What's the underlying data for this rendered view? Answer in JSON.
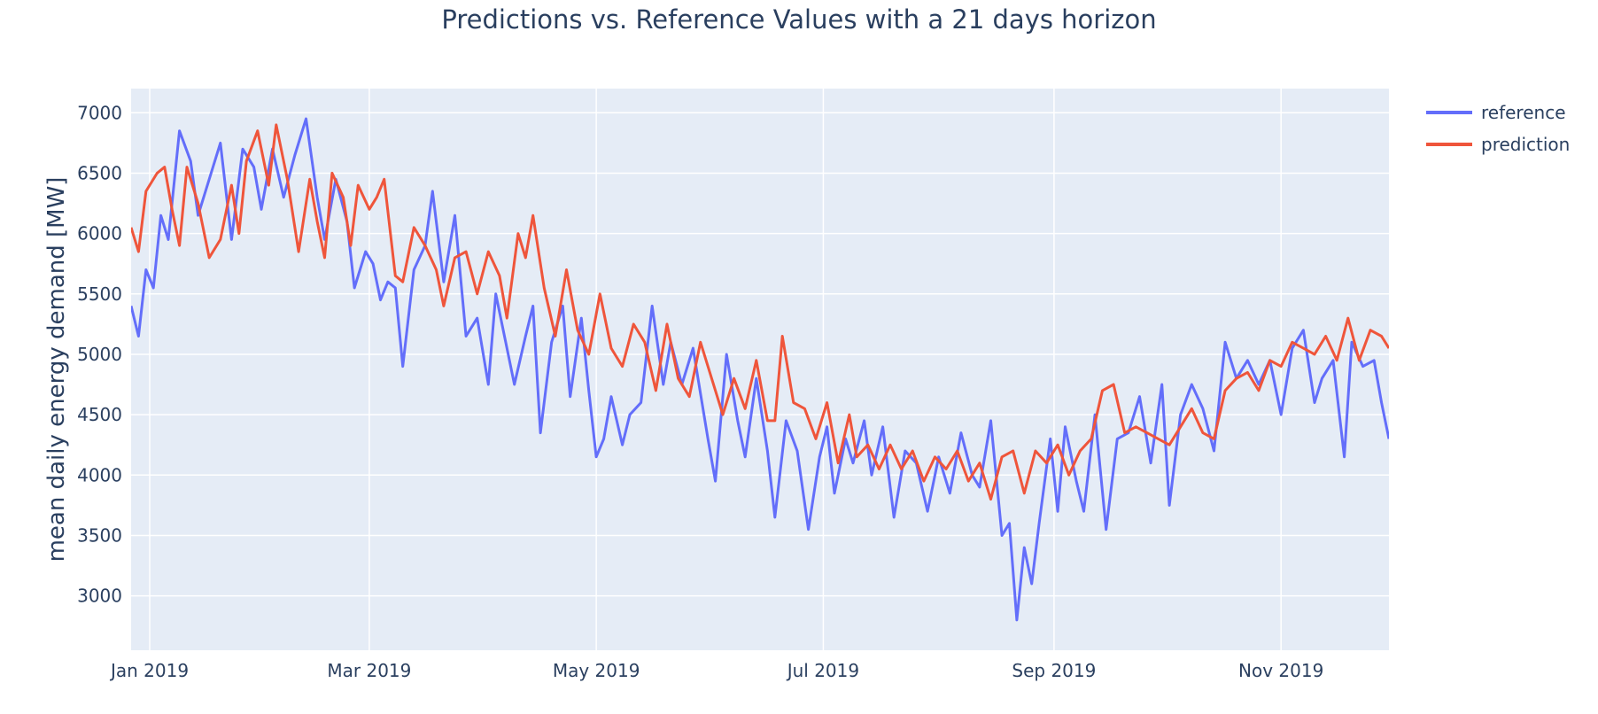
{
  "chart_data": {
    "type": "line",
    "title": "Predictions vs. Reference Values with a 21 days horizon",
    "xlabel": "",
    "ylabel": "mean daily energy demand [MW]",
    "x_range": [
      "2018-12-27",
      "2019-11-30"
    ],
    "ylim": [
      2550,
      7200
    ],
    "x_ticks": [
      {
        "date": "2019-01-01",
        "label": "Jan 2019"
      },
      {
        "date": "2019-03-01",
        "label": "Mar 2019"
      },
      {
        "date": "2019-05-01",
        "label": "May 2019"
      },
      {
        "date": "2019-07-01",
        "label": "Jul 2019"
      },
      {
        "date": "2019-09-01",
        "label": "Sep 2019"
      },
      {
        "date": "2019-11-01",
        "label": "Nov 2019"
      }
    ],
    "y_ticks": [
      3000,
      3500,
      4000,
      4500,
      5000,
      5500,
      6000,
      6500,
      7000
    ],
    "grid": true,
    "plot_background": "#e5ecf6",
    "legend_position": "top-right outside",
    "series": [
      {
        "name": "reference",
        "color": "#636efa",
        "points": [
          [
            "2018-12-27",
            5400
          ],
          [
            "2018-12-29",
            5150
          ],
          [
            "2018-12-31",
            5700
          ],
          [
            "2019-01-02",
            5550
          ],
          [
            "2019-01-04",
            6150
          ],
          [
            "2019-01-06",
            5950
          ],
          [
            "2019-01-09",
            6850
          ],
          [
            "2019-01-12",
            6600
          ],
          [
            "2019-01-14",
            6150
          ],
          [
            "2019-01-17",
            6450
          ],
          [
            "2019-01-20",
            6750
          ],
          [
            "2019-01-23",
            5950
          ],
          [
            "2019-01-26",
            6700
          ],
          [
            "2019-01-29",
            6550
          ],
          [
            "2019-01-31",
            6200
          ],
          [
            "2019-02-03",
            6700
          ],
          [
            "2019-02-06",
            6300
          ],
          [
            "2019-02-09",
            6650
          ],
          [
            "2019-02-12",
            6950
          ],
          [
            "2019-02-15",
            6300
          ],
          [
            "2019-02-17",
            5950
          ],
          [
            "2019-02-20",
            6450
          ],
          [
            "2019-02-23",
            6100
          ],
          [
            "2019-02-25",
            5550
          ],
          [
            "2019-02-28",
            5850
          ],
          [
            "2019-03-02",
            5750
          ],
          [
            "2019-03-04",
            5450
          ],
          [
            "2019-03-06",
            5600
          ],
          [
            "2019-03-08",
            5550
          ],
          [
            "2019-03-10",
            4900
          ],
          [
            "2019-03-13",
            5700
          ],
          [
            "2019-03-16",
            5900
          ],
          [
            "2019-03-18",
            6350
          ],
          [
            "2019-03-21",
            5600
          ],
          [
            "2019-03-24",
            6150
          ],
          [
            "2019-03-27",
            5150
          ],
          [
            "2019-03-30",
            5300
          ],
          [
            "2019-04-02",
            4750
          ],
          [
            "2019-04-04",
            5500
          ],
          [
            "2019-04-07",
            5050
          ],
          [
            "2019-04-09",
            4750
          ],
          [
            "2019-04-12",
            5150
          ],
          [
            "2019-04-14",
            5400
          ],
          [
            "2019-04-16",
            4350
          ],
          [
            "2019-04-19",
            5100
          ],
          [
            "2019-04-22",
            5400
          ],
          [
            "2019-04-24",
            4650
          ],
          [
            "2019-04-27",
            5300
          ],
          [
            "2019-04-29",
            4700
          ],
          [
            "2019-05-01",
            4150
          ],
          [
            "2019-05-03",
            4300
          ],
          [
            "2019-05-05",
            4650
          ],
          [
            "2019-05-08",
            4250
          ],
          [
            "2019-05-10",
            4500
          ],
          [
            "2019-05-13",
            4600
          ],
          [
            "2019-05-16",
            5400
          ],
          [
            "2019-05-19",
            4750
          ],
          [
            "2019-05-21",
            5100
          ],
          [
            "2019-05-24",
            4750
          ],
          [
            "2019-05-27",
            5050
          ],
          [
            "2019-05-31",
            4300
          ],
          [
            "2019-06-02",
            3950
          ],
          [
            "2019-06-05",
            5000
          ],
          [
            "2019-06-08",
            4450
          ],
          [
            "2019-06-10",
            4150
          ],
          [
            "2019-06-13",
            4800
          ],
          [
            "2019-06-16",
            4200
          ],
          [
            "2019-06-18",
            3650
          ],
          [
            "2019-06-21",
            4450
          ],
          [
            "2019-06-24",
            4200
          ],
          [
            "2019-06-27",
            3550
          ],
          [
            "2019-06-30",
            4150
          ],
          [
            "2019-07-02",
            4400
          ],
          [
            "2019-07-04",
            3850
          ],
          [
            "2019-07-07",
            4300
          ],
          [
            "2019-07-09",
            4100
          ],
          [
            "2019-07-12",
            4450
          ],
          [
            "2019-07-14",
            4000
          ],
          [
            "2019-07-17",
            4400
          ],
          [
            "2019-07-20",
            3650
          ],
          [
            "2019-07-23",
            4200
          ],
          [
            "2019-07-26",
            4100
          ],
          [
            "2019-07-29",
            3700
          ],
          [
            "2019-08-01",
            4150
          ],
          [
            "2019-08-04",
            3850
          ],
          [
            "2019-08-07",
            4350
          ],
          [
            "2019-08-10",
            4000
          ],
          [
            "2019-08-12",
            3900
          ],
          [
            "2019-08-15",
            4450
          ],
          [
            "2019-08-18",
            3500
          ],
          [
            "2019-08-20",
            3600
          ],
          [
            "2019-08-22",
            2800
          ],
          [
            "2019-08-24",
            3400
          ],
          [
            "2019-08-26",
            3100
          ],
          [
            "2019-08-28",
            3600
          ],
          [
            "2019-08-31",
            4300
          ],
          [
            "2019-09-02",
            3700
          ],
          [
            "2019-09-04",
            4400
          ],
          [
            "2019-09-07",
            3950
          ],
          [
            "2019-09-09",
            3700
          ],
          [
            "2019-09-12",
            4500
          ],
          [
            "2019-09-15",
            3550
          ],
          [
            "2019-09-18",
            4300
          ],
          [
            "2019-09-21",
            4350
          ],
          [
            "2019-09-24",
            4650
          ],
          [
            "2019-09-27",
            4100
          ],
          [
            "2019-09-30",
            4750
          ],
          [
            "2019-10-02",
            3750
          ],
          [
            "2019-10-05",
            4500
          ],
          [
            "2019-10-08",
            4750
          ],
          [
            "2019-10-11",
            4550
          ],
          [
            "2019-10-14",
            4200
          ],
          [
            "2019-10-17",
            5100
          ],
          [
            "2019-10-20",
            4800
          ],
          [
            "2019-10-23",
            4950
          ],
          [
            "2019-10-26",
            4750
          ],
          [
            "2019-10-29",
            4950
          ],
          [
            "2019-11-01",
            4500
          ],
          [
            "2019-11-04",
            5050
          ],
          [
            "2019-11-07",
            5200
          ],
          [
            "2019-11-10",
            4600
          ],
          [
            "2019-11-12",
            4800
          ],
          [
            "2019-11-15",
            4950
          ],
          [
            "2019-11-18",
            4150
          ],
          [
            "2019-11-20",
            5100
          ],
          [
            "2019-11-23",
            4900
          ],
          [
            "2019-11-26",
            4950
          ],
          [
            "2019-11-28",
            4600
          ],
          [
            "2019-11-30",
            4300
          ]
        ]
      },
      {
        "name": "prediction",
        "color": "#ef553b",
        "points": [
          [
            "2018-12-27",
            6050
          ],
          [
            "2018-12-29",
            5850
          ],
          [
            "2018-12-31",
            6350
          ],
          [
            "2019-01-03",
            6500
          ],
          [
            "2019-01-05",
            6550
          ],
          [
            "2019-01-07",
            6200
          ],
          [
            "2019-01-09",
            5900
          ],
          [
            "2019-01-11",
            6550
          ],
          [
            "2019-01-14",
            6250
          ],
          [
            "2019-01-17",
            5800
          ],
          [
            "2019-01-20",
            5950
          ],
          [
            "2019-01-23",
            6400
          ],
          [
            "2019-01-25",
            6000
          ],
          [
            "2019-01-27",
            6600
          ],
          [
            "2019-01-30",
            6850
          ],
          [
            "2019-02-02",
            6400
          ],
          [
            "2019-02-04",
            6900
          ],
          [
            "2019-02-07",
            6450
          ],
          [
            "2019-02-10",
            5850
          ],
          [
            "2019-02-13",
            6450
          ],
          [
            "2019-02-15",
            6100
          ],
          [
            "2019-02-17",
            5800
          ],
          [
            "2019-02-19",
            6500
          ],
          [
            "2019-02-22",
            6300
          ],
          [
            "2019-02-24",
            5900
          ],
          [
            "2019-02-26",
            6400
          ],
          [
            "2019-03-01",
            6200
          ],
          [
            "2019-03-03",
            6300
          ],
          [
            "2019-03-05",
            6450
          ],
          [
            "2019-03-08",
            5650
          ],
          [
            "2019-03-10",
            5600
          ],
          [
            "2019-03-13",
            6050
          ],
          [
            "2019-03-16",
            5900
          ],
          [
            "2019-03-19",
            5700
          ],
          [
            "2019-03-21",
            5400
          ],
          [
            "2019-03-24",
            5800
          ],
          [
            "2019-03-27",
            5850
          ],
          [
            "2019-03-30",
            5500
          ],
          [
            "2019-04-02",
            5850
          ],
          [
            "2019-04-05",
            5650
          ],
          [
            "2019-04-07",
            5300
          ],
          [
            "2019-04-10",
            6000
          ],
          [
            "2019-04-12",
            5800
          ],
          [
            "2019-04-14",
            6150
          ],
          [
            "2019-04-17",
            5550
          ],
          [
            "2019-04-20",
            5150
          ],
          [
            "2019-04-23",
            5700
          ],
          [
            "2019-04-26",
            5200
          ],
          [
            "2019-04-29",
            5000
          ],
          [
            "2019-05-02",
            5500
          ],
          [
            "2019-05-05",
            5050
          ],
          [
            "2019-05-08",
            4900
          ],
          [
            "2019-05-11",
            5250
          ],
          [
            "2019-05-14",
            5100
          ],
          [
            "2019-05-17",
            4700
          ],
          [
            "2019-05-20",
            5250
          ],
          [
            "2019-05-23",
            4800
          ],
          [
            "2019-05-26",
            4650
          ],
          [
            "2019-05-29",
            5100
          ],
          [
            "2019-06-01",
            4800
          ],
          [
            "2019-06-04",
            4500
          ],
          [
            "2019-06-07",
            4800
          ],
          [
            "2019-06-10",
            4550
          ],
          [
            "2019-06-13",
            4950
          ],
          [
            "2019-06-16",
            4450
          ],
          [
            "2019-06-18",
            4450
          ],
          [
            "2019-06-20",
            5150
          ],
          [
            "2019-06-23",
            4600
          ],
          [
            "2019-06-26",
            4550
          ],
          [
            "2019-06-29",
            4300
          ],
          [
            "2019-07-02",
            4600
          ],
          [
            "2019-07-05",
            4100
          ],
          [
            "2019-07-08",
            4500
          ],
          [
            "2019-07-10",
            4150
          ],
          [
            "2019-07-13",
            4250
          ],
          [
            "2019-07-16",
            4050
          ],
          [
            "2019-07-19",
            4250
          ],
          [
            "2019-07-22",
            4050
          ],
          [
            "2019-07-25",
            4200
          ],
          [
            "2019-07-28",
            3950
          ],
          [
            "2019-07-31",
            4150
          ],
          [
            "2019-08-03",
            4050
          ],
          [
            "2019-08-06",
            4200
          ],
          [
            "2019-08-09",
            3950
          ],
          [
            "2019-08-12",
            4100
          ],
          [
            "2019-08-15",
            3800
          ],
          [
            "2019-08-18",
            4150
          ],
          [
            "2019-08-21",
            4200
          ],
          [
            "2019-08-24",
            3850
          ],
          [
            "2019-08-27",
            4200
          ],
          [
            "2019-08-30",
            4100
          ],
          [
            "2019-09-02",
            4250
          ],
          [
            "2019-09-05",
            4000
          ],
          [
            "2019-09-08",
            4200
          ],
          [
            "2019-09-11",
            4300
          ],
          [
            "2019-09-14",
            4700
          ],
          [
            "2019-09-17",
            4750
          ],
          [
            "2019-09-20",
            4350
          ],
          [
            "2019-09-23",
            4400
          ],
          [
            "2019-09-26",
            4350
          ],
          [
            "2019-09-29",
            4300
          ],
          [
            "2019-10-02",
            4250
          ],
          [
            "2019-10-05",
            4400
          ],
          [
            "2019-10-08",
            4550
          ],
          [
            "2019-10-11",
            4350
          ],
          [
            "2019-10-14",
            4300
          ],
          [
            "2019-10-17",
            4700
          ],
          [
            "2019-10-20",
            4800
          ],
          [
            "2019-10-23",
            4850
          ],
          [
            "2019-10-26",
            4700
          ],
          [
            "2019-10-29",
            4950
          ],
          [
            "2019-11-01",
            4900
          ],
          [
            "2019-11-04",
            5100
          ],
          [
            "2019-11-07",
            5050
          ],
          [
            "2019-11-10",
            5000
          ],
          [
            "2019-11-13",
            5150
          ],
          [
            "2019-11-16",
            4950
          ],
          [
            "2019-11-19",
            5300
          ],
          [
            "2019-11-22",
            4950
          ],
          [
            "2019-11-25",
            5200
          ],
          [
            "2019-11-28",
            5150
          ],
          [
            "2019-11-30",
            5050
          ]
        ]
      }
    ]
  }
}
